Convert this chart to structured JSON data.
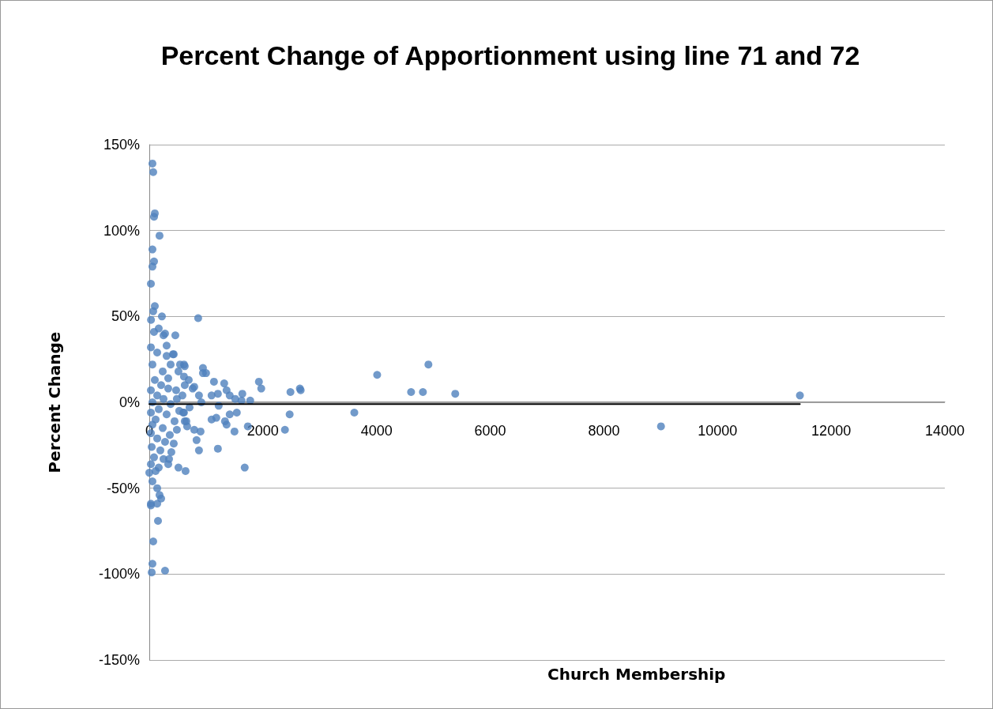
{
  "chart_data": {
    "type": "scatter",
    "title": "Percent Change of Apportionment using line 71 and 72",
    "xlabel": "Church Membership",
    "ylabel": "Percent Change",
    "xlim": [
      0,
      14000
    ],
    "xticks": [
      0,
      2000,
      4000,
      6000,
      8000,
      10000,
      12000,
      14000
    ],
    "ylim": [
      -150,
      150
    ],
    "yticks": [
      {
        "value": -150,
        "label": "-150%"
      },
      {
        "value": -100,
        "label": "-100%"
      },
      {
        "value": -50,
        "label": "-50%"
      },
      {
        "value": 0,
        "label": "0%"
      },
      {
        "value": 50,
        "label": "50%"
      },
      {
        "value": 100,
        "label": "100%"
      },
      {
        "value": 150,
        "label": "150%"
      }
    ],
    "grid": "y",
    "marker": "circle",
    "series": [
      {
        "color": "#4f81bd",
        "x": [
          55,
          69,
          97,
          83,
          180,
          55,
          83,
          55,
          28,
          97,
          69,
          222,
          860,
          30,
          166,
          83,
          250,
          28,
          139,
          305,
          55,
          416,
          236,
          375,
          513,
          97,
          208,
          28,
          333,
          472,
          139,
          250,
          55,
          375,
          166,
          28,
          305,
          111,
          444,
          55,
          236,
          28,
          361,
          139,
          277,
          42,
          194,
          388,
          83,
          250,
          28,
          166,
          0,
          111,
          583,
          694,
          791,
          527,
          666,
          333,
          610,
          55,
          139,
          180,
          208,
          139,
          28,
          28,
          153,
          69,
          55,
          42,
          277,
          638,
          513,
          333,
          347,
          430,
          485,
          624,
          610,
          597,
          485,
          430,
          305,
          277,
          458,
          541,
          624,
          610,
          624,
          652,
          708,
          763,
          832,
          874,
          791,
          902,
          916,
          874,
          944,
          944,
          999,
          1096,
          1207,
          1138,
          1096,
          1179,
          1207,
          1221,
          1318,
          1360,
          1415,
          1512,
          1332,
          1360,
          1415,
          1540,
          1499,
          1734,
          1679,
          1623,
          1776,
          1637,
          1929,
          1970,
          2387,
          2470,
          2484,
          2650,
          2664,
          3608,
          4010,
          4607,
          4815,
          4912,
          5384,
          9005,
          11450
        ],
        "values": [
          139,
          134,
          110,
          108,
          97,
          89,
          82,
          79,
          69,
          56,
          53,
          50,
          49,
          48,
          43,
          41,
          39,
          32,
          29,
          27,
          22,
          28,
          18,
          22,
          18,
          13,
          10,
          7,
          8,
          7,
          4,
          2,
          0,
          -1,
          -4,
          -6,
          -7,
          -10,
          -11,
          -13,
          -15,
          -18,
          -19,
          -21,
          -23,
          -26,
          -28,
          -29,
          -32,
          -33,
          -36,
          -38,
          -41,
          -40,
          4,
          13,
          9,
          -5,
          -14,
          14,
          22,
          -46,
          -50,
          -54,
          -56,
          -59,
          -59,
          -60,
          -69,
          -81,
          -94,
          -99,
          -98,
          -40,
          -38,
          -36,
          -33,
          -24,
          -16,
          -11,
          -6,
          -6,
          2,
          28,
          33,
          40,
          39,
          22,
          21,
          15,
          10,
          -11,
          -3,
          8,
          -22,
          -28,
          -16,
          -17,
          0,
          4,
          17,
          20,
          17,
          4,
          -27,
          12,
          -10,
          -9,
          5,
          -2,
          11,
          -13,
          4,
          2,
          -11,
          7,
          -7,
          -6,
          -17,
          -14,
          -38,
          1,
          1,
          5,
          12,
          8,
          -16,
          -7,
          6,
          8,
          7,
          -6,
          16,
          6,
          6,
          22,
          5,
          -14,
          4
        ]
      },
      {
        "type": "line",
        "color": "#000000",
        "marker": "none",
        "line_style": "solid",
        "x": [
          0,
          11450
        ],
        "values": [
          -1,
          -1
        ]
      }
    ]
  }
}
